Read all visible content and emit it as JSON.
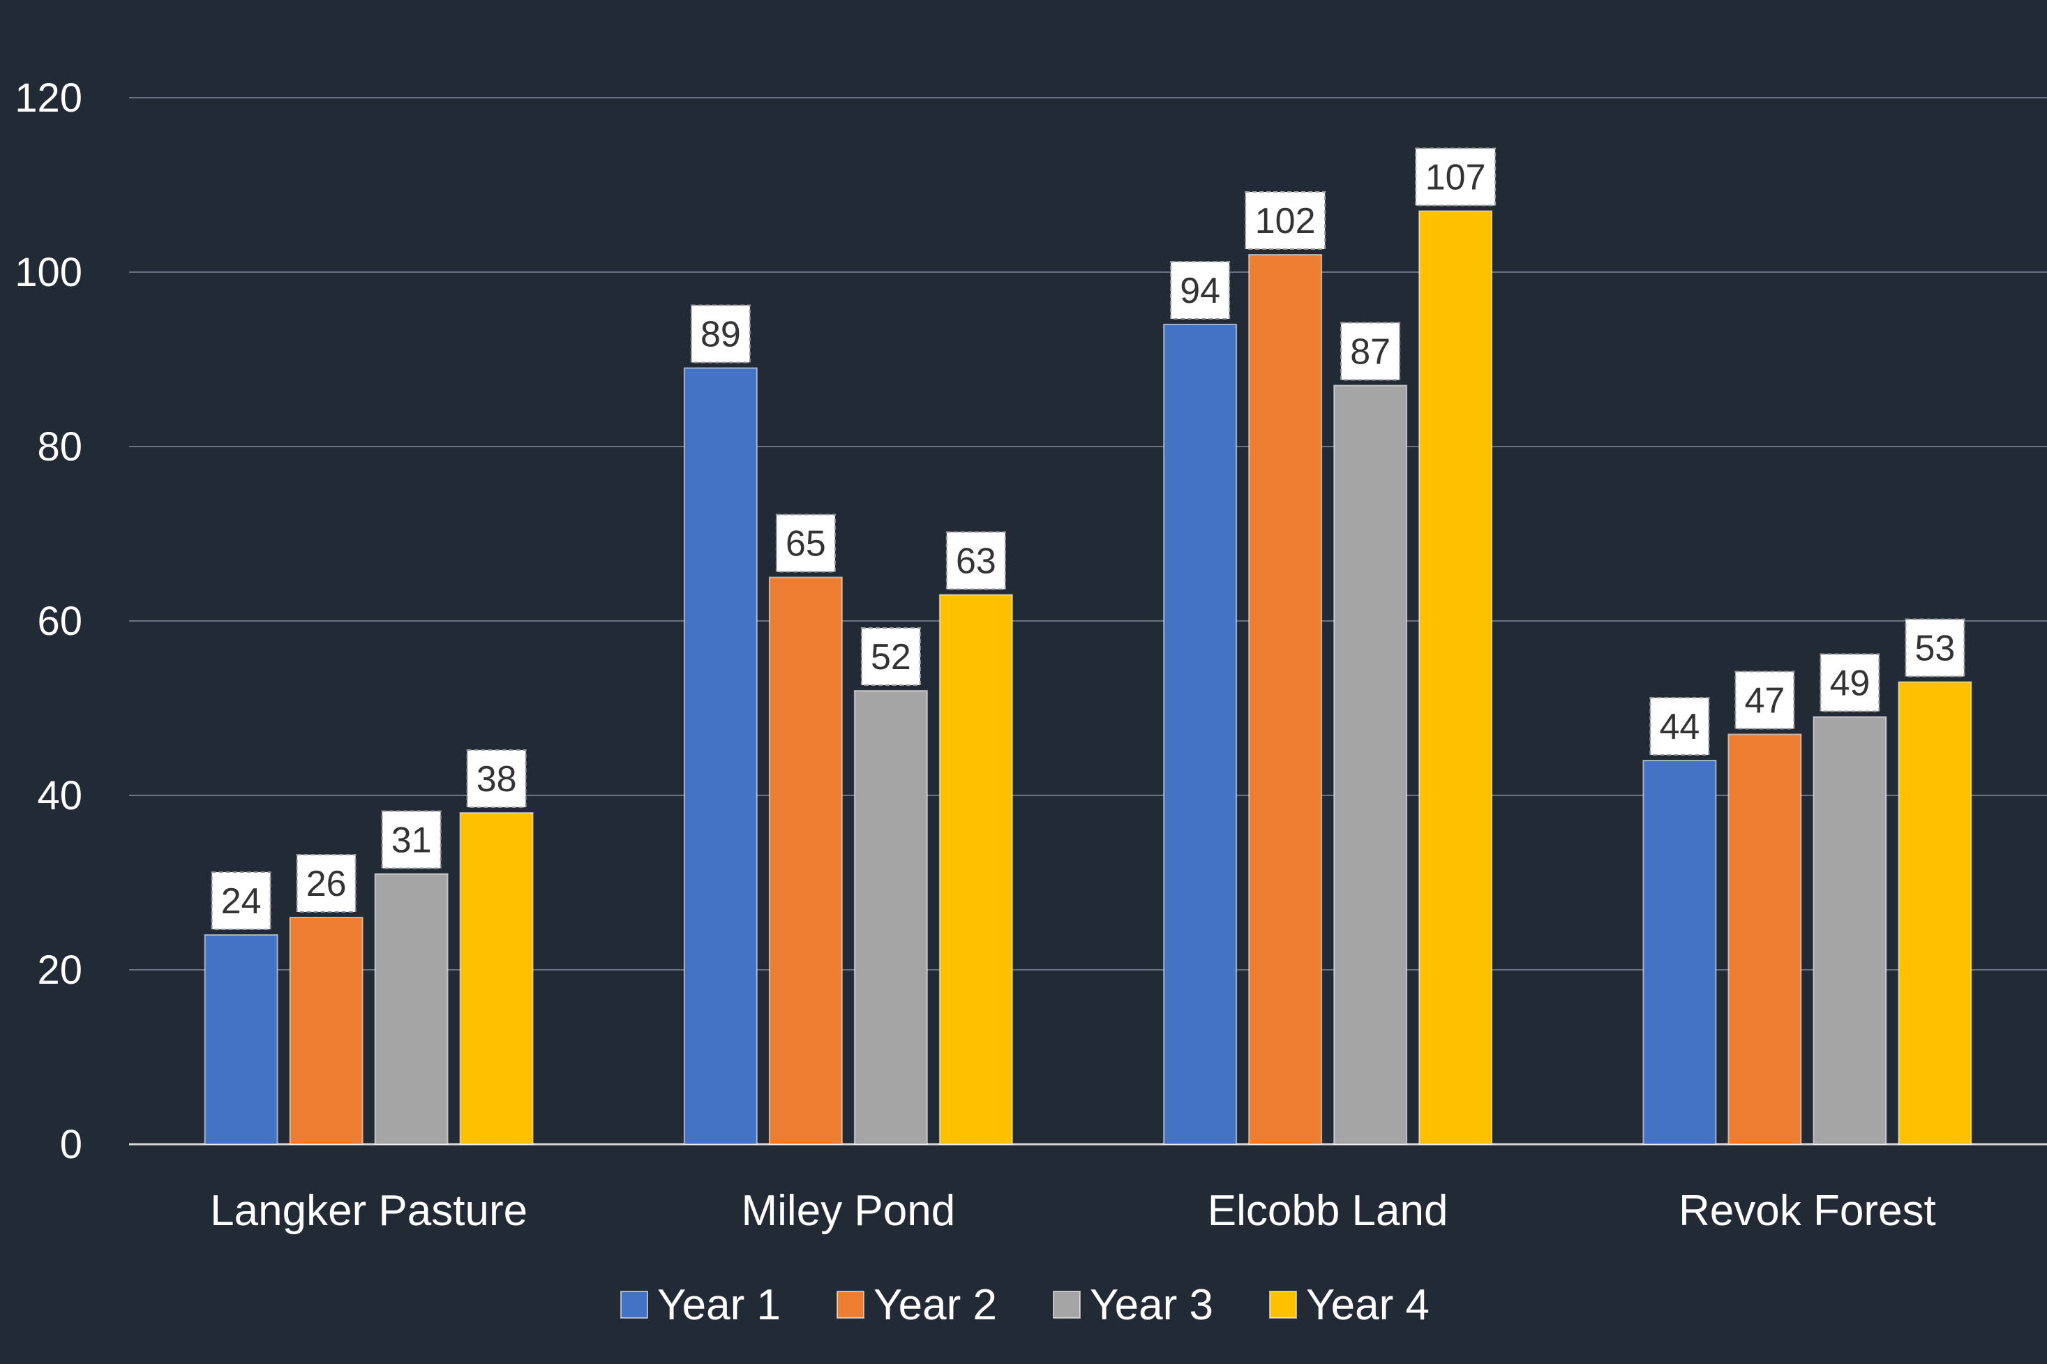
{
  "chart_data": {
    "type": "bar",
    "title": "",
    "xlabel": "",
    "ylabel": "",
    "ylim": [
      0,
      120
    ],
    "yticks": [
      0,
      20,
      40,
      60,
      80,
      100,
      120
    ],
    "grid": true,
    "legend_position": "bottom",
    "categories": [
      "Langker Pasture",
      "Miley Pond",
      "Elcobb Land",
      "Revok Forest"
    ],
    "series": [
      {
        "name": "Year 1",
        "color": "#4472c4",
        "values": [
          24,
          89,
          94,
          44
        ]
      },
      {
        "name": "Year 2",
        "color": "#ed7d31",
        "values": [
          26,
          65,
          102,
          47
        ]
      },
      {
        "name": "Year 3",
        "color": "#a5a5a5",
        "values": [
          31,
          52,
          87,
          49
        ]
      },
      {
        "name": "Year 4",
        "color": "#ffc000",
        "values": [
          38,
          63,
          107,
          53
        ]
      }
    ]
  }
}
